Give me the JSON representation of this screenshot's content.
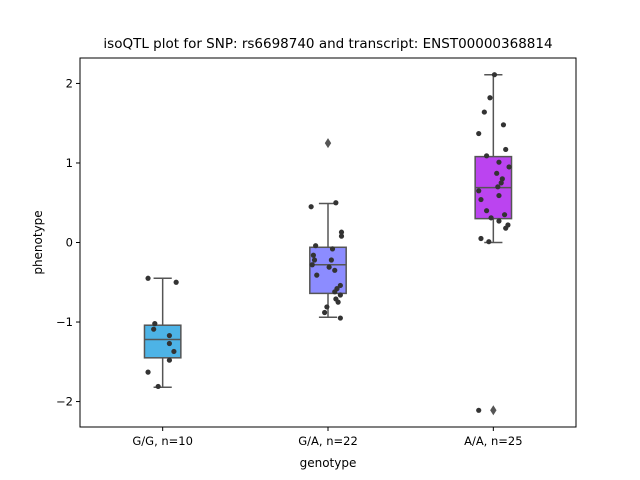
{
  "chart_data": {
    "type": "box",
    "title": "isoQTL plot for SNP: rs6698740 and transcript: ENST00000368814",
    "xlabel": "genotype",
    "ylabel": "phenotype",
    "ylim": [
      -2.32,
      2.32
    ],
    "yticks": [
      {
        "value": 2,
        "label": "2"
      },
      {
        "value": 1,
        "label": "1"
      },
      {
        "value": 0,
        "label": "0"
      },
      {
        "value": -1,
        "label": "−1"
      },
      {
        "value": -2,
        "label": "−2"
      }
    ],
    "grid": false,
    "categories": [
      "G/G, n=10",
      "G/A, n=22",
      "A/A, n=25"
    ],
    "groups": [
      {
        "label": "G/G, n=10",
        "color": "#4db3e6",
        "box": {
          "q1": -1.45,
          "median": -1.22,
          "q3": -1.04,
          "whisker_low": -1.82,
          "whisker_high": -0.45
        },
        "outliers": [],
        "points": [
          {
            "dx": -0.13,
            "y": -0.45
          },
          {
            "dx": 0.12,
            "y": -0.5
          },
          {
            "dx": -0.07,
            "y": -1.02
          },
          {
            "dx": -0.08,
            "y": -1.09
          },
          {
            "dx": 0.06,
            "y": -1.17
          },
          {
            "dx": 0.06,
            "y": -1.27
          },
          {
            "dx": 0.1,
            "y": -1.37
          },
          {
            "dx": 0.06,
            "y": -1.48
          },
          {
            "dx": -0.13,
            "y": -1.63
          },
          {
            "dx": -0.04,
            "y": -1.81
          }
        ]
      },
      {
        "label": "G/A, n=22",
        "color": "#8c8cff",
        "box": {
          "q1": -0.64,
          "median": -0.28,
          "q3": -0.06,
          "whisker_low": -0.94,
          "whisker_high": 0.49
        },
        "outliers": [
          1.25
        ],
        "points": [
          {
            "dx": -0.15,
            "y": 0.45
          },
          {
            "dx": 0.07,
            "y": 0.5
          },
          {
            "dx": 0.12,
            "y": 0.13
          },
          {
            "dx": 0.12,
            "y": 0.08
          },
          {
            "dx": -0.11,
            "y": -0.04
          },
          {
            "dx": 0.04,
            "y": -0.08
          },
          {
            "dx": -0.13,
            "y": -0.16
          },
          {
            "dx": -0.12,
            "y": -0.22
          },
          {
            "dx": 0.03,
            "y": -0.22
          },
          {
            "dx": -0.14,
            "y": -0.28
          },
          {
            "dx": 0.01,
            "y": -0.31
          },
          {
            "dx": 0.06,
            "y": -0.35
          },
          {
            "dx": -0.1,
            "y": -0.41
          },
          {
            "dx": 0.11,
            "y": -0.54
          },
          {
            "dx": 0.08,
            "y": -0.58
          },
          {
            "dx": 0.06,
            "y": -0.62
          },
          {
            "dx": 0.11,
            "y": -0.66
          },
          {
            "dx": 0.07,
            "y": -0.71
          },
          {
            "dx": 0.09,
            "y": -0.75
          },
          {
            "dx": -0.01,
            "y": -0.81
          },
          {
            "dx": -0.03,
            "y": -0.88
          },
          {
            "dx": 0.11,
            "y": -0.95
          }
        ]
      },
      {
        "label": "A/A, n=25",
        "color": "#bb44f0",
        "box": {
          "q1": 0.3,
          "median": 0.69,
          "q3": 1.08,
          "whisker_low": 0.0,
          "whisker_high": 2.11
        },
        "outliers": [
          -2.11
        ],
        "points": [
          {
            "dx": 0.01,
            "y": 2.11
          },
          {
            "dx": -0.03,
            "y": 1.82
          },
          {
            "dx": -0.08,
            "y": 1.64
          },
          {
            "dx": 0.09,
            "y": 1.48
          },
          {
            "dx": -0.13,
            "y": 1.37
          },
          {
            "dx": 0.11,
            "y": 1.17
          },
          {
            "dx": -0.06,
            "y": 1.09
          },
          {
            "dx": 0.05,
            "y": 1.01
          },
          {
            "dx": 0.14,
            "y": 0.95
          },
          {
            "dx": 0.03,
            "y": 0.87
          },
          {
            "dx": 0.08,
            "y": 0.8
          },
          {
            "dx": 0.07,
            "y": 0.75
          },
          {
            "dx": 0.04,
            "y": 0.7
          },
          {
            "dx": -0.13,
            "y": 0.65
          },
          {
            "dx": 0.05,
            "y": 0.59
          },
          {
            "dx": -0.11,
            "y": 0.54
          },
          {
            "dx": -0.06,
            "y": 0.4
          },
          {
            "dx": 0.1,
            "y": 0.35
          },
          {
            "dx": -0.02,
            "y": 0.31
          },
          {
            "dx": 0.05,
            "y": 0.27
          },
          {
            "dx": 0.13,
            "y": 0.22
          },
          {
            "dx": 0.11,
            "y": 0.18
          },
          {
            "dx": -0.11,
            "y": 0.05
          },
          {
            "dx": -0.04,
            "y": 0.01
          },
          {
            "dx": -0.13,
            "y": -2.11
          }
        ]
      }
    ]
  }
}
